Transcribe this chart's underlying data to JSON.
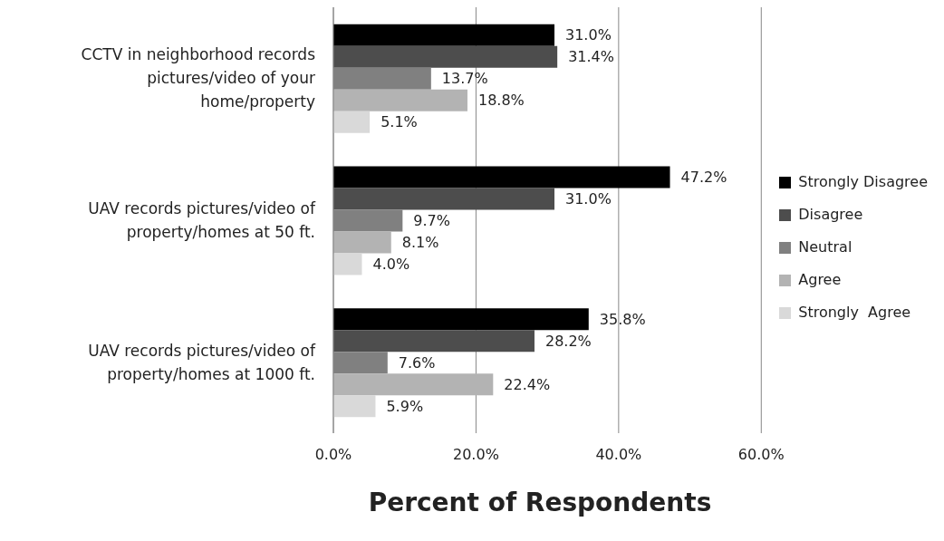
{
  "chart_data": {
    "type": "bar",
    "orientation": "horizontal",
    "xlabel": "Percent of Respondents",
    "categories": [
      "CCTV in neighborhood records pictures/video of your home/property",
      "UAV records pictures/video of property/homes at 50 ft.",
      "UAV records pictures/video of property/homes at 1000 ft."
    ],
    "series": [
      {
        "name": "Strongly Disagree",
        "color": "#000000",
        "values": [
          31.0,
          47.2,
          35.8
        ],
        "value_labels": [
          "31.0%",
          "47.2%",
          "35.8%"
        ]
      },
      {
        "name": "Disagree",
        "color": "#4d4d4d",
        "values": [
          31.4,
          31.0,
          28.2
        ],
        "value_labels": [
          "31.4%",
          "31.0%",
          "28.2%"
        ]
      },
      {
        "name": "Neutral",
        "color": "#808080",
        "values": [
          13.7,
          9.7,
          7.6
        ],
        "value_labels": [
          "13.7%",
          "9.7%",
          "7.6%"
        ]
      },
      {
        "name": "Agree",
        "color": "#b3b3b3",
        "values": [
          18.8,
          8.1,
          22.4
        ],
        "value_labels": [
          "18.8%",
          "8.1%",
          "22.4%"
        ]
      },
      {
        "name": "Strongly  Agree",
        "color": "#d9d9d9",
        "values": [
          5.1,
          4.0,
          5.9
        ],
        "value_labels": [
          "5.1%",
          "4.0%",
          "5.9%"
        ]
      }
    ],
    "xlim": [
      0,
      60
    ],
    "xticks": [
      {
        "value": 0,
        "label": "0.0%"
      },
      {
        "value": 20,
        "label": "20.0%"
      },
      {
        "value": 40,
        "label": "40.0%"
      },
      {
        "value": 60,
        "label": "60.0%"
      }
    ],
    "grid": "x",
    "legend": "right"
  }
}
